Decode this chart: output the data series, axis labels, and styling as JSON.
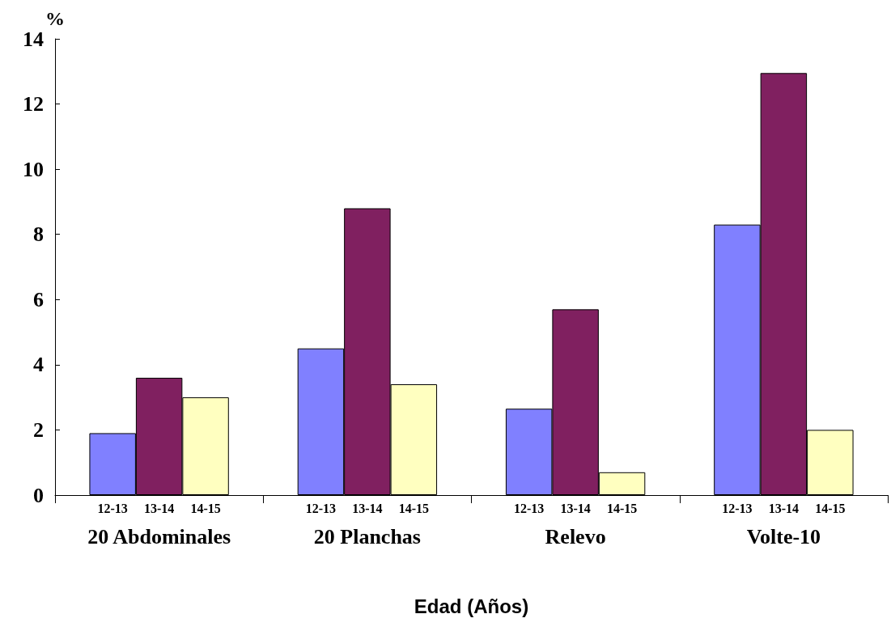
{
  "chart_data": {
    "type": "bar",
    "xlabel": "Edad (Años)",
    "ylabel": "%",
    "categories": [
      "20 Abdominales",
      "20 Planchas",
      "Relevo",
      "Volte-10"
    ],
    "series": [
      {
        "name": "12-13",
        "color": "#8080ff",
        "values": [
          1.9,
          4.5,
          2.65,
          8.3
        ]
      },
      {
        "name": "13-14",
        "color": "#802060",
        "values": [
          3.6,
          8.8,
          5.7,
          12.95
        ]
      },
      {
        "name": "14-15",
        "color": "#ffffc0",
        "values": [
          3.0,
          3.4,
          0.7,
          2.0
        ]
      }
    ],
    "ylim": [
      0,
      14
    ],
    "yticks": [
      0,
      2,
      4,
      6,
      8,
      10,
      12,
      14
    ],
    "grid": false,
    "legend": false
  }
}
